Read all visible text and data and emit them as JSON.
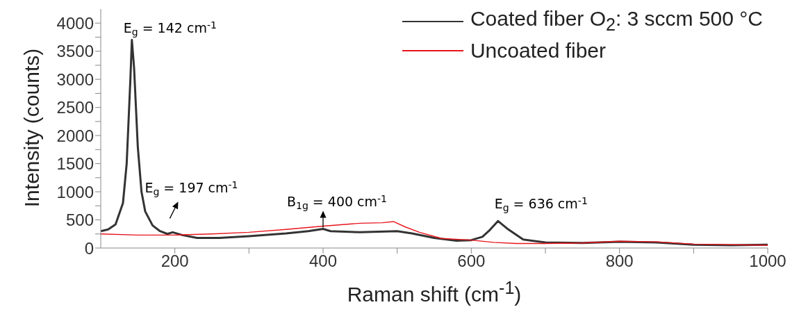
{
  "chart_data": {
    "type": "line",
    "xlabel": "Raman shift (cm$^{-1}$)",
    "ylabel": "Intensity (counts)",
    "xlim": [
      100,
      1000
    ],
    "xticks": [
      200,
      {
        "value": 300,
        "label": null
      },
      400,
      {
        "value": 500,
        "label": null
      },
      600,
      {
        "value": 700,
        "label": null
      },
      800,
      {
        "value": 900,
        "label": null
      },
      1000
    ],
    "ylim": [
      0,
      4250
    ],
    "yticks": [
      0,
      {
        "value": 250,
        "label": null
      },
      500,
      {
        "value": 750,
        "label": null
      },
      1000,
      {
        "value": 1250,
        "label": null
      },
      1500,
      {
        "value": 1750,
        "label": null
      },
      2000,
      {
        "value": 2250,
        "label": null
      },
      2500,
      {
        "value": 2750,
        "label": null
      },
      3000,
      {
        "value": 3250,
        "label": null
      },
      3500,
      {
        "value": 3750,
        "label": null
      },
      4000
    ],
    "grid": false,
    "legend": "top right",
    "marker": "none",
    "line_style": "solid",
    "series": [
      {
        "name": "Coated fiber O$_{2}$: 3 sccm 500 °C",
        "color": "#333333",
        "x": [
          100,
          110,
          120,
          130,
          135,
          140,
          142,
          145,
          150,
          155,
          160,
          170,
          180,
          190,
          197,
          210,
          230,
          260,
          300,
          350,
          380,
          400,
          410,
          450,
          500,
          520,
          550,
          580,
          600,
          615,
          625,
          636,
          650,
          670,
          700,
          750,
          800,
          850,
          900,
          950,
          1000
        ],
        "values": [
          300,
          330,
          420,
          800,
          1500,
          3000,
          3700,
          3200,
          1800,
          1000,
          650,
          400,
          300,
          250,
          280,
          230,
          180,
          180,
          210,
          260,
          300,
          340,
          300,
          280,
          300,
          260,
          180,
          130,
          140,
          200,
          320,
          480,
          330,
          150,
          100,
          90,
          110,
          100,
          60,
          50,
          60
        ]
      },
      {
        "name": "Uncoated fiber",
        "color": "#e8141c",
        "x": [
          100,
          150,
          200,
          250,
          300,
          350,
          400,
          450,
          480,
          495,
          510,
          530,
          560,
          600,
          630,
          660,
          700,
          750,
          800,
          850,
          900,
          1000
        ],
        "values": [
          250,
          230,
          230,
          250,
          280,
          330,
          390,
          440,
          450,
          470,
          380,
          280,
          170,
          140,
          100,
          80,
          80,
          90,
          120,
          110,
          70,
          50
        ]
      }
    ],
    "annotations": [
      {
        "text": "E$_{g}$ = 142 cm$^{-1}$",
        "x": 142,
        "y": 3700
      },
      {
        "text": "E$_{g}$ = 197 cm$^{-1}$",
        "x": 197,
        "y": 280
      },
      {
        "text": "B$_{1g}$ = 400 cm$^{-1}$",
        "x": 400,
        "y": 340
      },
      {
        "text": "E$_{g}$ = 636 cm$^{-1}$",
        "x": 636,
        "y": 480
      }
    ]
  }
}
